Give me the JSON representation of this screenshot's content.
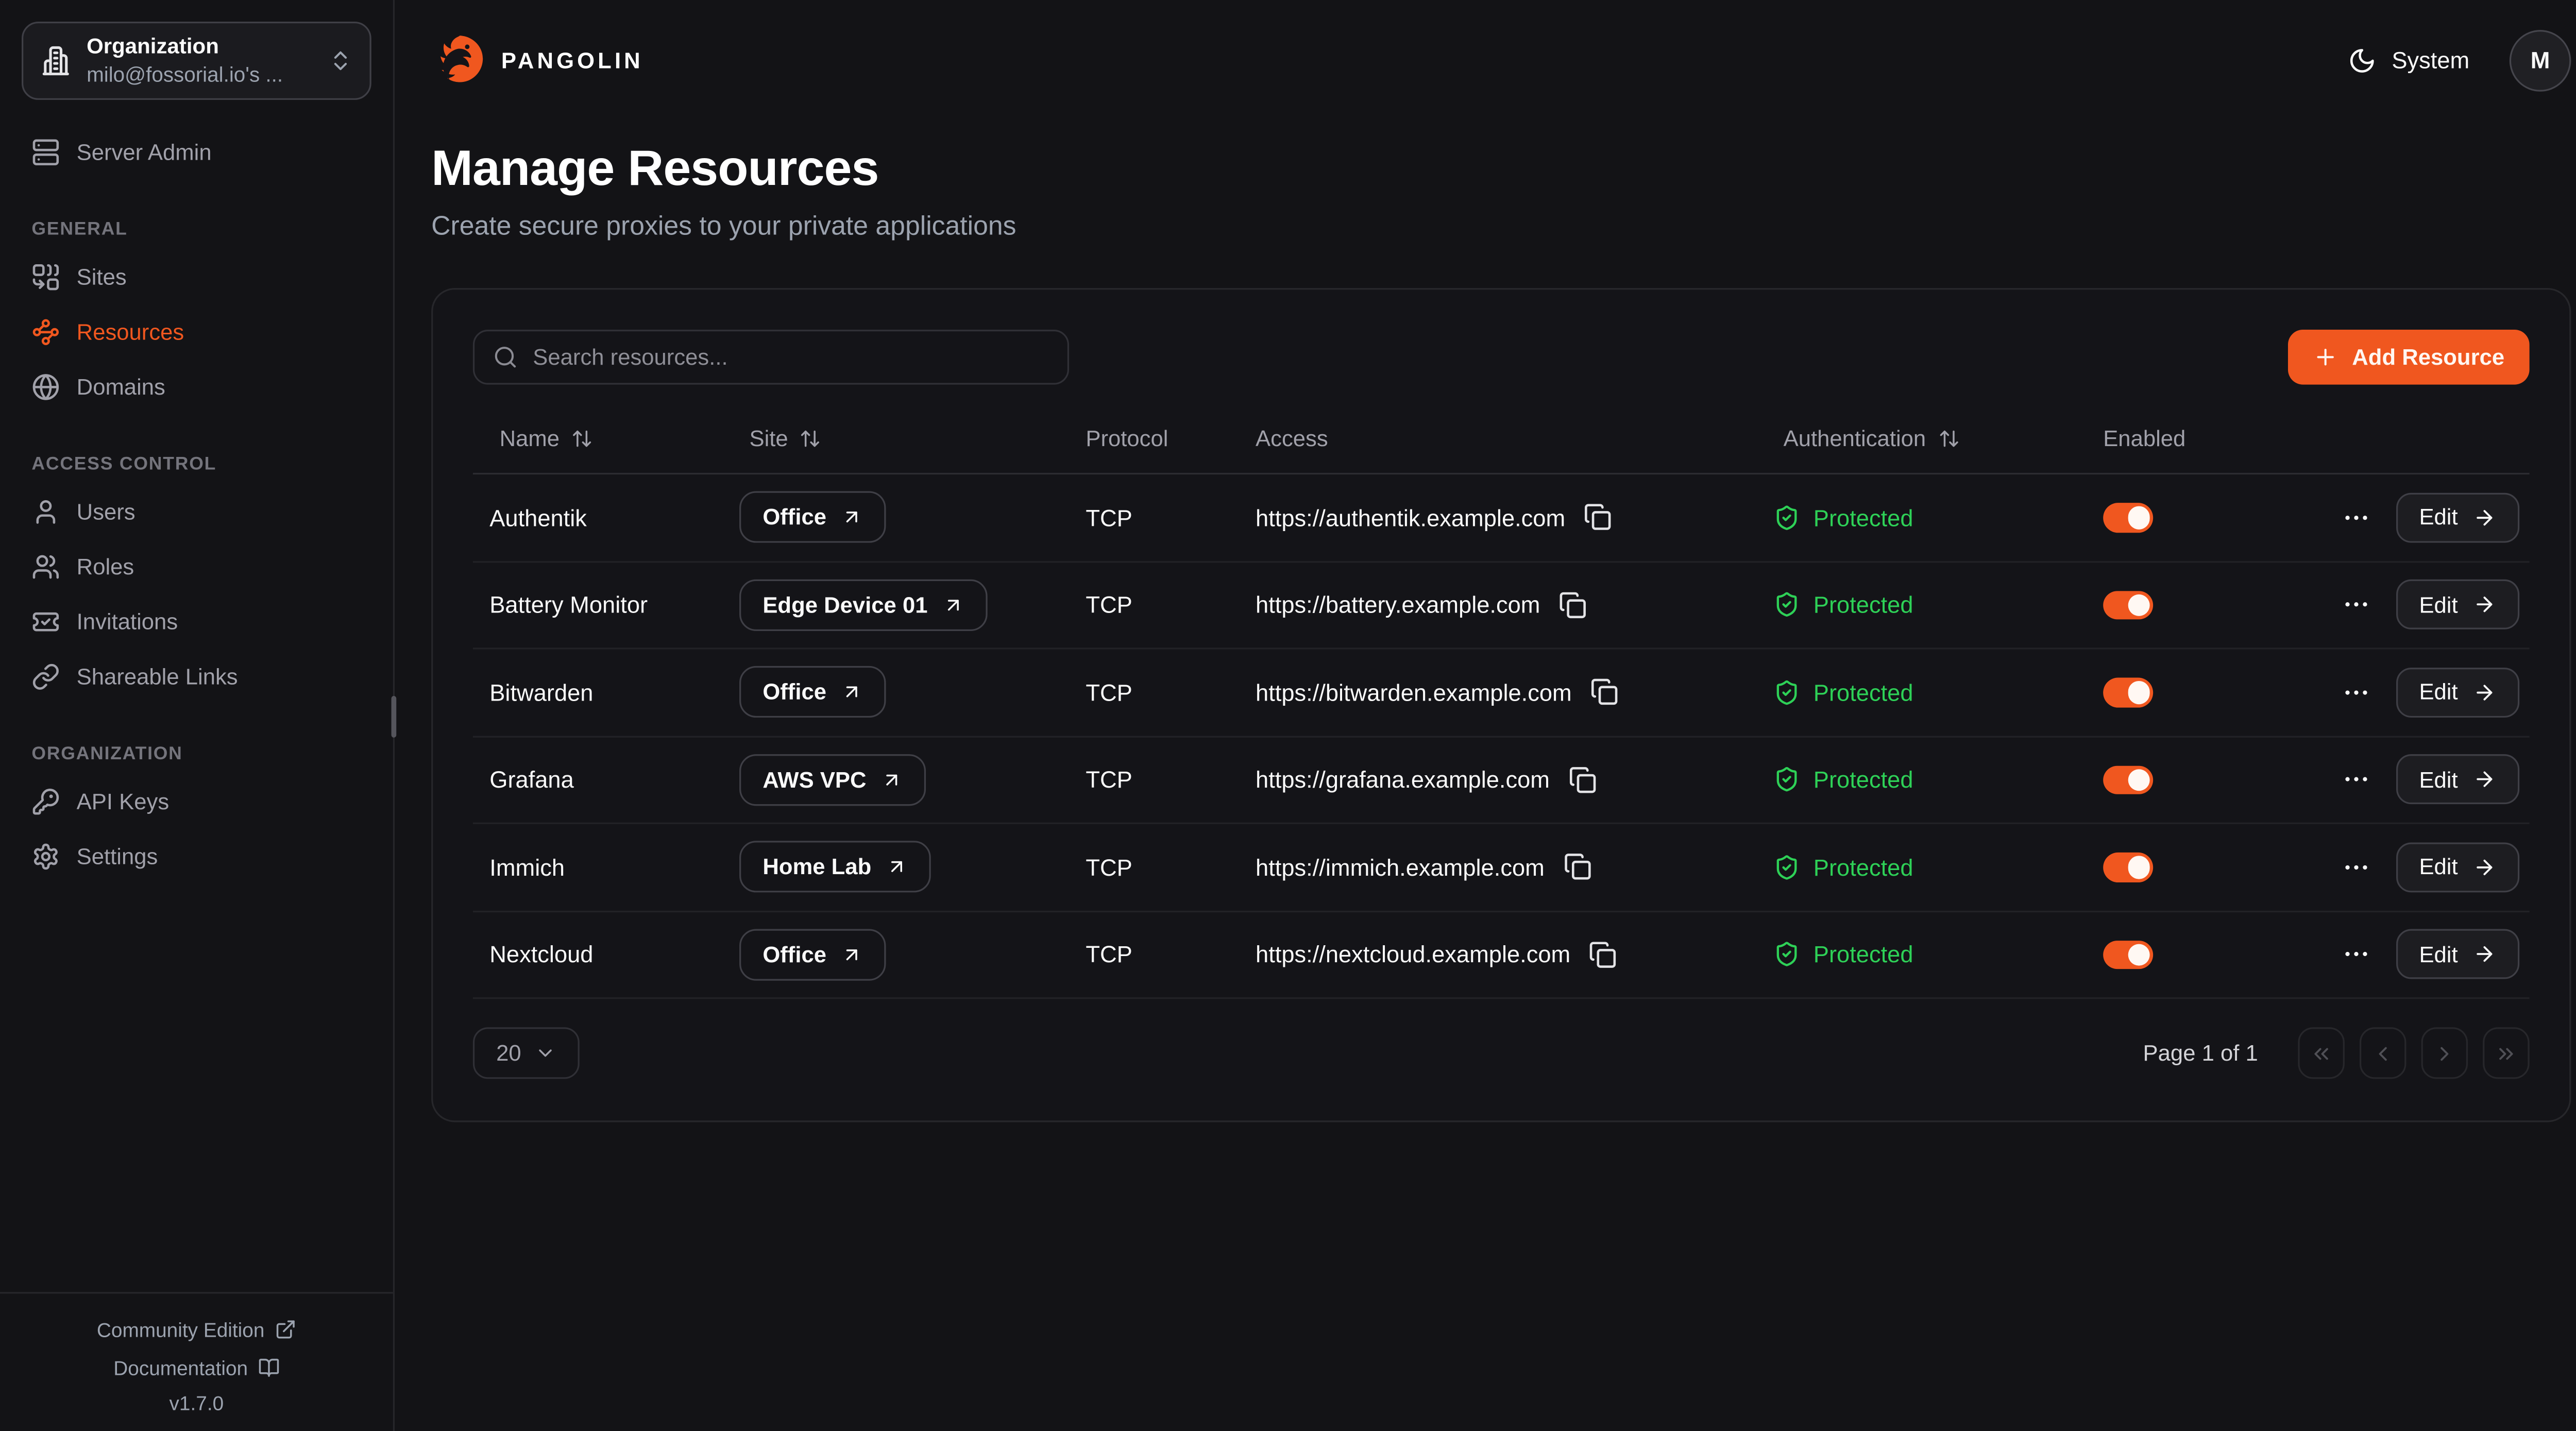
{
  "colors": {
    "accent": "#f0571f",
    "protected_green": "#2ed157"
  },
  "sidebar": {
    "org_selector": {
      "label": "Organization",
      "value": "milo@fossorial.io's ...",
      "icon": "building"
    },
    "top_items": [
      {
        "label": "Server Admin",
        "icon": "server"
      }
    ],
    "sections": [
      {
        "label": "GENERAL",
        "items": [
          {
            "label": "Sites",
            "icon": "combine",
            "active": false
          },
          {
            "label": "Resources",
            "icon": "waypoints",
            "active": true
          },
          {
            "label": "Domains",
            "icon": "globe",
            "active": false
          }
        ]
      },
      {
        "label": "ACCESS CONTROL",
        "items": [
          {
            "label": "Users",
            "icon": "user",
            "active": false
          },
          {
            "label": "Roles",
            "icon": "users",
            "active": false
          },
          {
            "label": "Invitations",
            "icon": "ticket-check",
            "active": false
          },
          {
            "label": "Shareable Links",
            "icon": "link",
            "active": false
          }
        ]
      },
      {
        "label": "ORGANIZATION",
        "items": [
          {
            "label": "API Keys",
            "icon": "key-round",
            "active": false
          },
          {
            "label": "Settings",
            "icon": "settings",
            "active": false
          }
        ]
      }
    ],
    "footer": {
      "links": [
        {
          "label": "Community Edition",
          "icon": "external-link"
        },
        {
          "label": "Documentation",
          "icon": "book-open"
        }
      ],
      "version": "v1.7.0"
    }
  },
  "header": {
    "brand": "PANGOLIN",
    "theme_label": "System",
    "avatar_initial": "M"
  },
  "page": {
    "title": "Manage Resources",
    "subtitle": "Create secure proxies to your private applications"
  },
  "toolbar": {
    "search_placeholder": "Search resources...",
    "add_button_label": "Add Resource"
  },
  "table": {
    "columns": [
      {
        "label": "Name",
        "sortable": true
      },
      {
        "label": "Site",
        "sortable": true
      },
      {
        "label": "Protocol",
        "sortable": false
      },
      {
        "label": "Access",
        "sortable": false
      },
      {
        "label": "Authentication",
        "sortable": true
      },
      {
        "label": "Enabled",
        "sortable": false
      }
    ],
    "edit_label": "Edit",
    "rows": [
      {
        "name": "Authentik",
        "site": "Office",
        "protocol": "TCP",
        "access": "https://authentik.example.com",
        "authentication": "Protected",
        "enabled": true
      },
      {
        "name": "Battery Monitor",
        "site": "Edge Device 01",
        "protocol": "TCP",
        "access": "https://battery.example.com",
        "authentication": "Protected",
        "enabled": true
      },
      {
        "name": "Bitwarden",
        "site": "Office",
        "protocol": "TCP",
        "access": "https://bitwarden.example.com",
        "authentication": "Protected",
        "enabled": true
      },
      {
        "name": "Grafana",
        "site": "AWS VPC",
        "protocol": "TCP",
        "access": "https://grafana.example.com",
        "authentication": "Protected",
        "enabled": true
      },
      {
        "name": "Immich",
        "site": "Home Lab",
        "protocol": "TCP",
        "access": "https://immich.example.com",
        "authentication": "Protected",
        "enabled": true
      },
      {
        "name": "Nextcloud",
        "site": "Office",
        "protocol": "TCP",
        "access": "https://nextcloud.example.com",
        "authentication": "Protected",
        "enabled": true
      }
    ]
  },
  "pagination": {
    "page_size": "20",
    "label": "Page 1 of 1"
  }
}
